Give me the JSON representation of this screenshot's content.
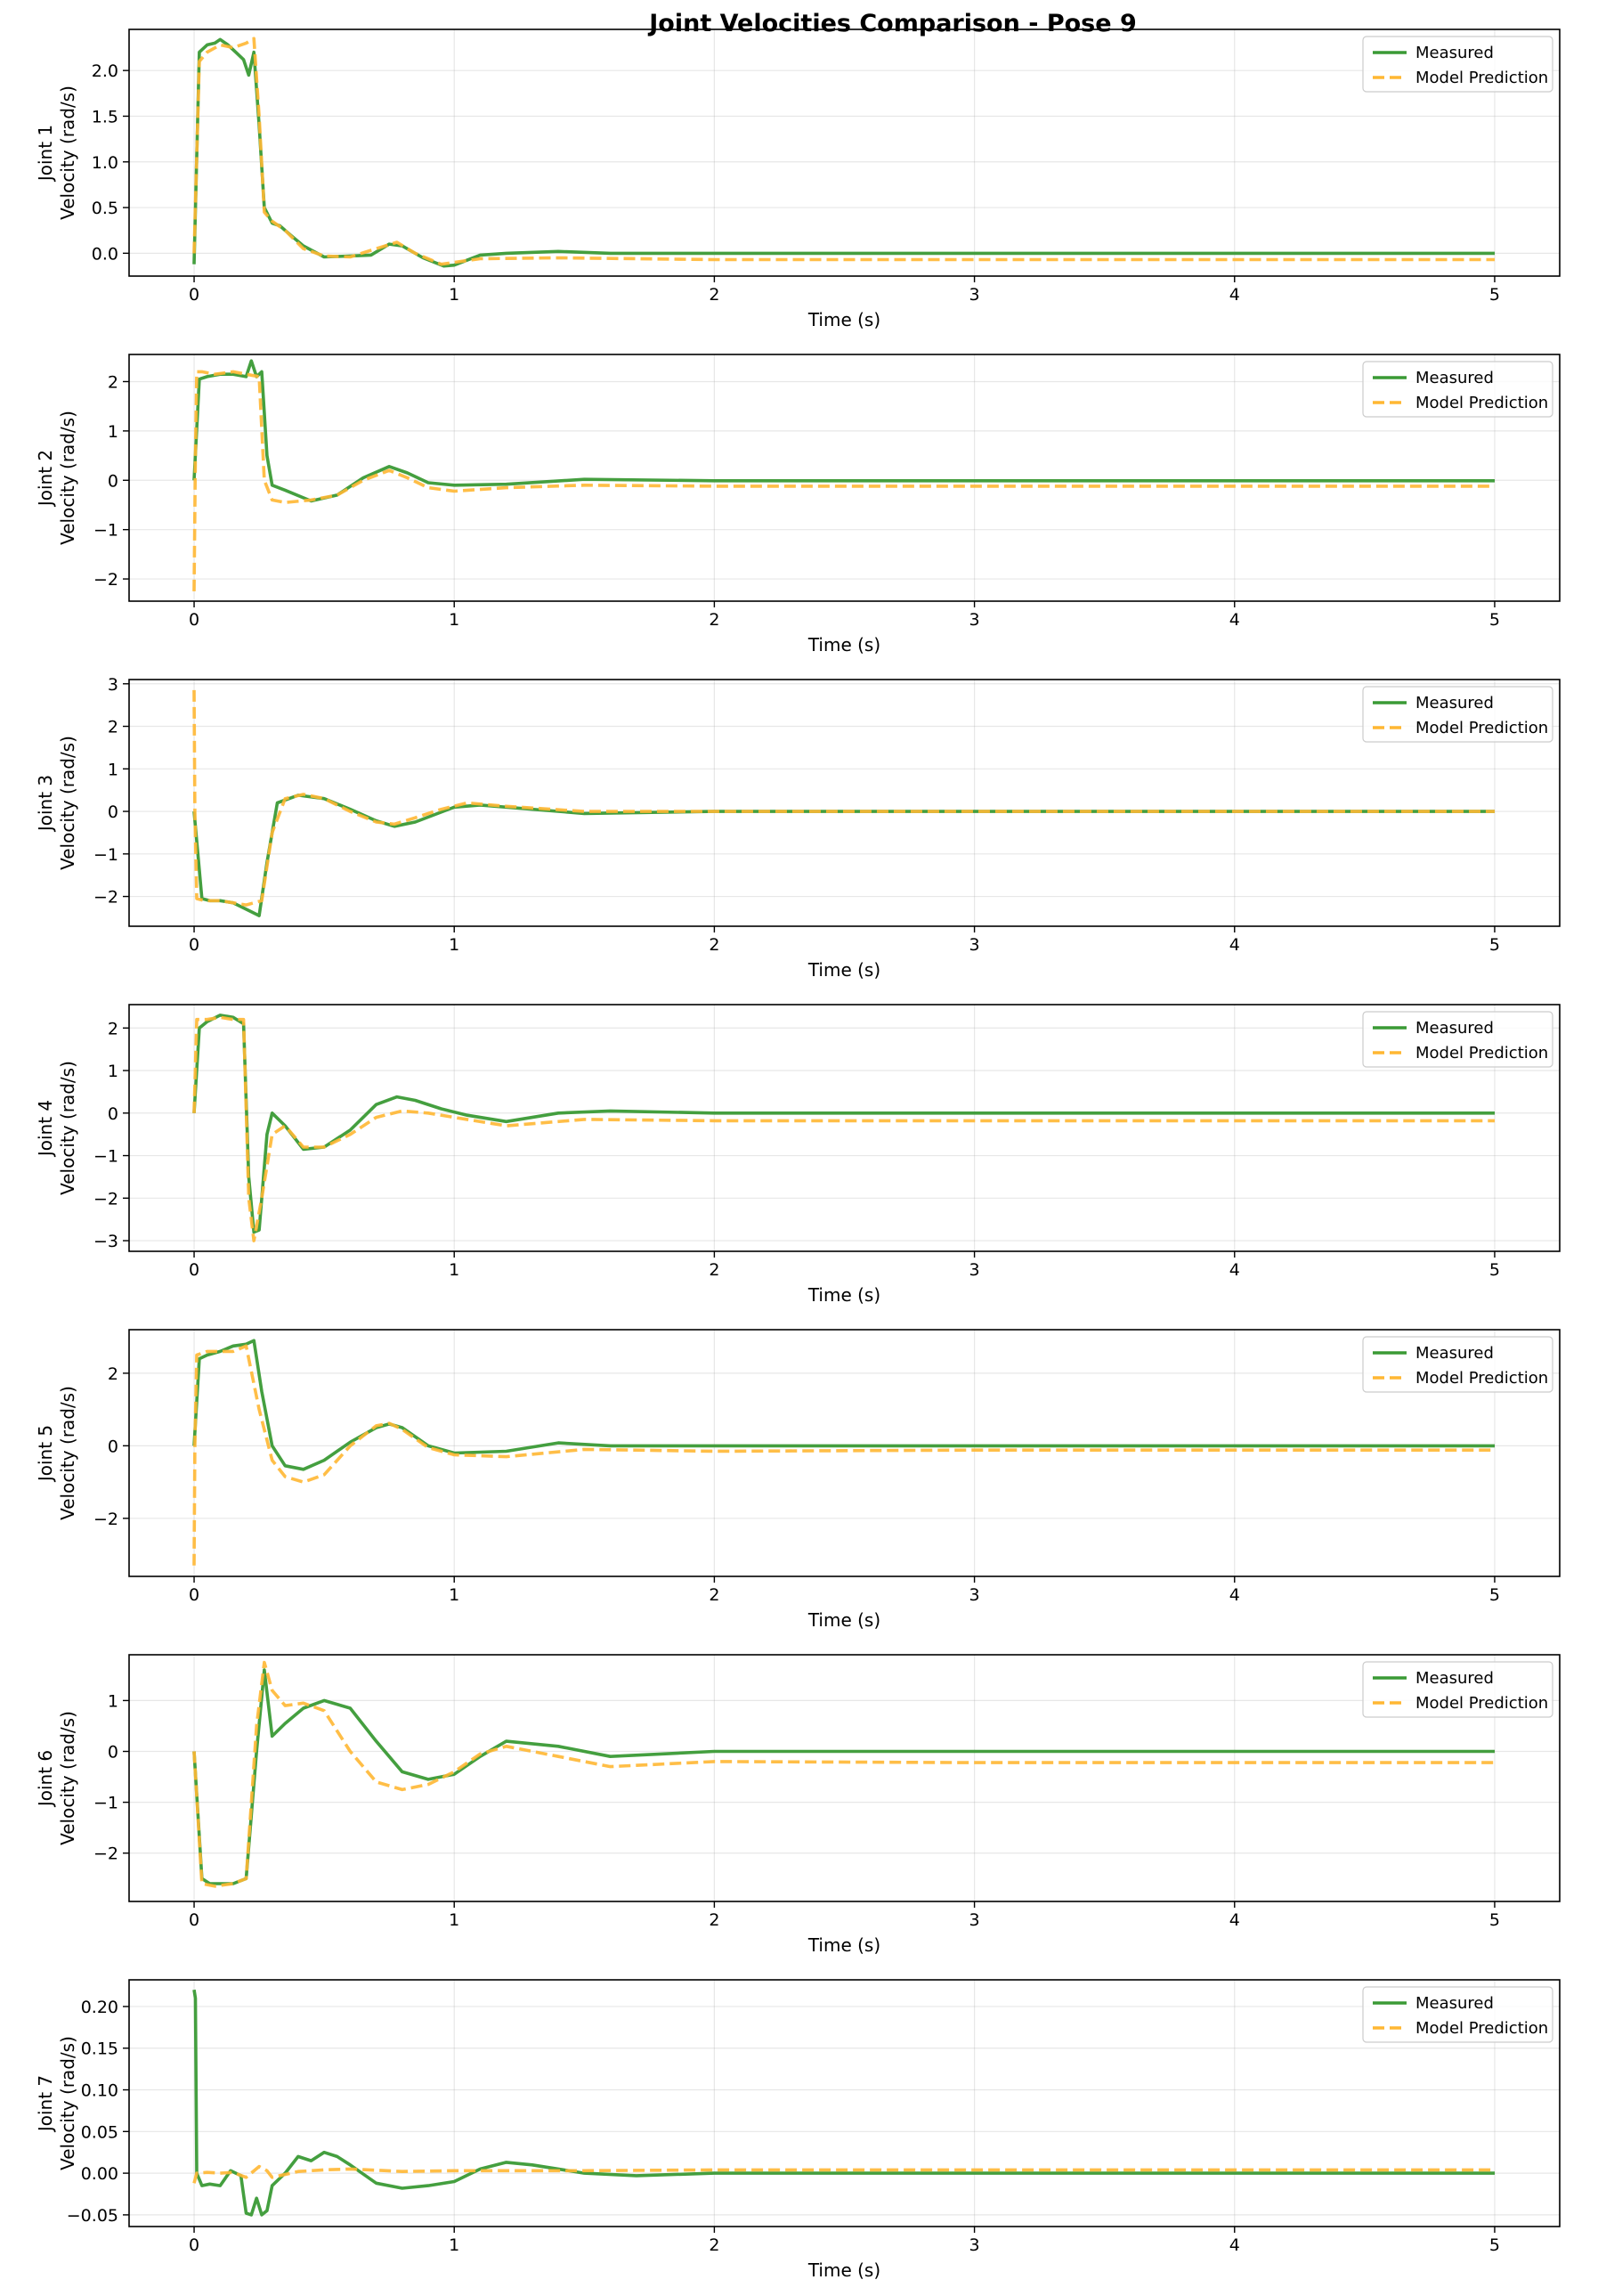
{
  "title": "Joint Velocities Comparison - Pose 9",
  "colors": {
    "measured": "#3a9a35",
    "predicted": "#ffb733"
  },
  "chart_data": [
    {
      "type": "line",
      "xlabel": "Time (s)",
      "ylabel": [
        "Joint 1",
        "Velocity (rad/s)"
      ],
      "xlim": [
        -0.25,
        5.25
      ],
      "ylim": [
        -0.25,
        2.45
      ],
      "xticks": [
        0,
        1,
        2,
        3,
        4,
        5
      ],
      "xticklabels": [
        "0",
        "1",
        "2",
        "3",
        "4",
        "5"
      ],
      "yticks": [
        0,
        0.5,
        1,
        1.5,
        2
      ],
      "yticklabels": [
        "0.0",
        "0.5",
        "1.0",
        "1.5",
        "2.0"
      ],
      "legend": "top-right",
      "series": [
        {
          "name": "Measured",
          "style": "solid",
          "x": [
            0,
            0.02,
            0.05,
            0.08,
            0.1,
            0.13,
            0.16,
            0.19,
            0.21,
            0.23,
            0.25,
            0.27,
            0.3,
            0.33,
            0.37,
            0.42,
            0.5,
            0.6,
            0.68,
            0.75,
            0.8,
            0.88,
            0.96,
            1.0,
            1.1,
            1.2,
            1.4,
            1.6,
            2.0,
            3.0,
            4.0,
            5.0
          ],
          "y": [
            -0.12,
            2.2,
            2.28,
            2.3,
            2.34,
            2.28,
            2.2,
            2.12,
            1.95,
            2.2,
            1.4,
            0.5,
            0.33,
            0.3,
            0.2,
            0.08,
            -0.04,
            -0.03,
            -0.02,
            0.1,
            0.08,
            -0.05,
            -0.14,
            -0.13,
            -0.02,
            0.0,
            0.02,
            0.0,
            0.0,
            0.0,
            0.0,
            0.0
          ]
        },
        {
          "name": "Model Prediction",
          "style": "dashed",
          "x": [
            0,
            0.02,
            0.05,
            0.1,
            0.15,
            0.2,
            0.23,
            0.25,
            0.27,
            0.3,
            0.35,
            0.42,
            0.5,
            0.6,
            0.7,
            0.78,
            0.85,
            0.95,
            1.0,
            1.1,
            1.4,
            2.0,
            3.0,
            4.0,
            5.0
          ],
          "y": [
            0,
            2.1,
            2.2,
            2.28,
            2.25,
            2.3,
            2.35,
            1.5,
            0.45,
            0.35,
            0.25,
            0.05,
            -0.03,
            -0.04,
            0.05,
            0.12,
            0.0,
            -0.12,
            -0.1,
            -0.06,
            -0.05,
            -0.07,
            -0.07,
            -0.07,
            -0.07
          ]
        }
      ]
    },
    {
      "type": "line",
      "xlabel": "Time (s)",
      "ylabel": [
        "Joint 2",
        "Velocity (rad/s)"
      ],
      "xlim": [
        -0.25,
        5.25
      ],
      "ylim": [
        -2.45,
        2.55
      ],
      "xticks": [
        0,
        1,
        2,
        3,
        4,
        5
      ],
      "xticklabels": [
        "0",
        "1",
        "2",
        "3",
        "4",
        "5"
      ],
      "yticks": [
        -2,
        -1,
        0,
        1,
        2
      ],
      "yticklabels": [
        "−2",
        "−1",
        "0",
        "1",
        "2"
      ],
      "legend": "top-right",
      "series": [
        {
          "name": "Measured",
          "style": "solid",
          "x": [
            0,
            0.02,
            0.05,
            0.1,
            0.15,
            0.2,
            0.22,
            0.24,
            0.26,
            0.28,
            0.3,
            0.35,
            0.45,
            0.55,
            0.65,
            0.75,
            0.82,
            0.9,
            1.0,
            1.2,
            1.5,
            2.0,
            3.0,
            4.0,
            5.0
          ],
          "y": [
            0,
            2.05,
            2.1,
            2.15,
            2.15,
            2.1,
            2.42,
            2.1,
            2.2,
            0.5,
            -0.1,
            -0.2,
            -0.42,
            -0.3,
            0.05,
            0.28,
            0.15,
            -0.05,
            -0.1,
            -0.08,
            0.02,
            -0.01,
            -0.01,
            -0.01,
            -0.01
          ]
        },
        {
          "name": "Model Prediction",
          "style": "dashed",
          "x": [
            0,
            0.005,
            0.01,
            0.03,
            0.08,
            0.15,
            0.2,
            0.25,
            0.27,
            0.3,
            0.35,
            0.45,
            0.55,
            0.65,
            0.75,
            0.82,
            0.9,
            1.0,
            1.2,
            1.5,
            2.0,
            3.0,
            4.0,
            5.0
          ],
          "y": [
            -2.25,
            0.5,
            2.2,
            2.2,
            2.15,
            2.2,
            2.15,
            2.1,
            0.0,
            -0.4,
            -0.45,
            -0.4,
            -0.3,
            0.0,
            0.2,
            0.05,
            -0.15,
            -0.22,
            -0.15,
            -0.1,
            -0.12,
            -0.12,
            -0.12,
            -0.12
          ]
        }
      ]
    },
    {
      "type": "line",
      "xlabel": "Time (s)",
      "ylabel": [
        "Joint 3",
        "Velocity (rad/s)"
      ],
      "xlim": [
        -0.25,
        5.25
      ],
      "ylim": [
        -2.7,
        3.1
      ],
      "xticks": [
        0,
        1,
        2,
        3,
        4,
        5
      ],
      "xticklabels": [
        "0",
        "1",
        "2",
        "3",
        "4",
        "5"
      ],
      "yticks": [
        -2,
        -1,
        0,
        1,
        2,
        3
      ],
      "yticklabels": [
        "−2",
        "−1",
        "0",
        "1",
        "2",
        "3"
      ],
      "legend": "top-right",
      "series": [
        {
          "name": "Measured",
          "style": "solid",
          "x": [
            0,
            0.03,
            0.06,
            0.1,
            0.15,
            0.2,
            0.25,
            0.28,
            0.32,
            0.4,
            0.5,
            0.6,
            0.7,
            0.77,
            0.85,
            1.0,
            1.1,
            1.2,
            1.5,
            2.0,
            3.0,
            4.0,
            5.0
          ],
          "y": [
            0,
            -2.05,
            -2.1,
            -2.1,
            -2.15,
            -2.3,
            -2.45,
            -1.2,
            0.2,
            0.38,
            0.3,
            0.05,
            -0.22,
            -0.35,
            -0.25,
            0.1,
            0.15,
            0.1,
            -0.05,
            0.0,
            0.0,
            0.0,
            0.0
          ]
        },
        {
          "name": "Model Prediction",
          "style": "dashed",
          "x": [
            0,
            0.003,
            0.01,
            0.04,
            0.1,
            0.15,
            0.2,
            0.26,
            0.3,
            0.35,
            0.42,
            0.5,
            0.6,
            0.7,
            0.77,
            0.85,
            0.95,
            1.05,
            1.2,
            1.5,
            2.0,
            3.0,
            4.0,
            5.0
          ],
          "y": [
            2.85,
            0.0,
            -2.05,
            -2.1,
            -2.1,
            -2.15,
            -2.2,
            -2.1,
            -0.5,
            0.3,
            0.4,
            0.3,
            0.0,
            -0.25,
            -0.3,
            -0.15,
            0.05,
            0.2,
            0.12,
            0.0,
            0.0,
            0.0,
            0.0,
            0.0
          ]
        }
      ]
    },
    {
      "type": "line",
      "xlabel": "Time (s)",
      "ylabel": [
        "Joint 4",
        "Velocity (rad/s)"
      ],
      "xlim": [
        -0.25,
        5.25
      ],
      "ylim": [
        -3.25,
        2.55
      ],
      "xticks": [
        0,
        1,
        2,
        3,
        4,
        5
      ],
      "xticklabels": [
        "0",
        "1",
        "2",
        "3",
        "4",
        "5"
      ],
      "yticks": [
        -3,
        -2,
        -1,
        0,
        1,
        2
      ],
      "yticklabels": [
        "−3",
        "−2",
        "−1",
        "0",
        "1",
        "2"
      ],
      "legend": "top-right",
      "series": [
        {
          "name": "Measured",
          "style": "solid",
          "x": [
            0,
            0.02,
            0.05,
            0.1,
            0.15,
            0.19,
            0.21,
            0.23,
            0.25,
            0.28,
            0.3,
            0.35,
            0.42,
            0.5,
            0.6,
            0.7,
            0.78,
            0.85,
            0.95,
            1.05,
            1.2,
            1.4,
            1.6,
            2.0,
            3.0,
            4.0,
            5.0
          ],
          "y": [
            0,
            2.0,
            2.15,
            2.3,
            2.25,
            2.1,
            -1.5,
            -2.8,
            -2.75,
            -0.5,
            0.0,
            -0.3,
            -0.85,
            -0.8,
            -0.4,
            0.2,
            0.38,
            0.3,
            0.1,
            -0.05,
            -0.2,
            0.0,
            0.05,
            0.0,
            0.0,
            0.0,
            0.0
          ]
        },
        {
          "name": "Model Prediction",
          "style": "dashed",
          "x": [
            0,
            0.01,
            0.05,
            0.1,
            0.15,
            0.19,
            0.21,
            0.23,
            0.26,
            0.3,
            0.35,
            0.42,
            0.5,
            0.6,
            0.7,
            0.8,
            0.9,
            1.0,
            1.2,
            1.5,
            2.0,
            3.0,
            4.0,
            5.0
          ],
          "y": [
            0,
            2.2,
            2.2,
            2.25,
            2.2,
            2.2,
            -2.0,
            -3.0,
            -2.0,
            -0.5,
            -0.3,
            -0.8,
            -0.8,
            -0.5,
            -0.1,
            0.05,
            0.0,
            -0.1,
            -0.3,
            -0.15,
            -0.18,
            -0.18,
            -0.18,
            -0.18
          ]
        }
      ]
    },
    {
      "type": "line",
      "xlabel": "Time (s)",
      "ylabel": [
        "Joint 5",
        "Velocity (rad/s)"
      ],
      "xlim": [
        -0.25,
        5.25
      ],
      "ylim": [
        -3.6,
        3.2
      ],
      "xticks": [
        0,
        1,
        2,
        3,
        4,
        5
      ],
      "xticklabels": [
        "0",
        "1",
        "2",
        "3",
        "4",
        "5"
      ],
      "yticks": [
        -2,
        0,
        2
      ],
      "yticklabels": [
        "−2",
        "0",
        "2"
      ],
      "legend": "top-right",
      "series": [
        {
          "name": "Measured",
          "style": "solid",
          "x": [
            0,
            0.02,
            0.05,
            0.1,
            0.15,
            0.2,
            0.23,
            0.26,
            0.3,
            0.35,
            0.42,
            0.5,
            0.6,
            0.7,
            0.75,
            0.8,
            0.9,
            1.0,
            1.2,
            1.4,
            1.6,
            2.0,
            3.0,
            4.0,
            5.0
          ],
          "y": [
            0,
            2.4,
            2.5,
            2.6,
            2.75,
            2.8,
            2.9,
            1.5,
            0.0,
            -0.55,
            -0.65,
            -0.4,
            0.1,
            0.5,
            0.6,
            0.5,
            0.0,
            -0.2,
            -0.15,
            0.08,
            0.0,
            0.0,
            0.0,
            0.0,
            0.0
          ]
        },
        {
          "name": "Model Prediction",
          "style": "dashed",
          "x": [
            0,
            0.003,
            0.01,
            0.05,
            0.1,
            0.15,
            0.2,
            0.25,
            0.3,
            0.35,
            0.42,
            0.5,
            0.6,
            0.7,
            0.75,
            0.8,
            0.9,
            1.0,
            1.2,
            1.5,
            2.0,
            3.0,
            4.0,
            5.0
          ],
          "y": [
            -3.3,
            0.0,
            2.5,
            2.6,
            2.6,
            2.6,
            2.75,
            1.0,
            -0.4,
            -0.85,
            -1.0,
            -0.8,
            0.0,
            0.55,
            0.62,
            0.45,
            -0.05,
            -0.25,
            -0.3,
            -0.1,
            -0.15,
            -0.12,
            -0.12,
            -0.12
          ]
        }
      ]
    },
    {
      "type": "line",
      "xlabel": "Time (s)",
      "ylabel": [
        "Joint 6",
        "Velocity (rad/s)"
      ],
      "xlim": [
        -0.25,
        5.25
      ],
      "ylim": [
        -2.95,
        1.9
      ],
      "xticks": [
        0,
        1,
        2,
        3,
        4,
        5
      ],
      "xticklabels": [
        "0",
        "1",
        "2",
        "3",
        "4",
        "5"
      ],
      "yticks": [
        -2,
        -1,
        0,
        1
      ],
      "yticklabels": [
        "−2",
        "−1",
        "0",
        "1"
      ],
      "legend": "top-right",
      "series": [
        {
          "name": "Measured",
          "style": "solid",
          "x": [
            0,
            0.03,
            0.06,
            0.1,
            0.15,
            0.2,
            0.24,
            0.27,
            0.3,
            0.35,
            0.42,
            0.5,
            0.6,
            0.7,
            0.8,
            0.9,
            1.0,
            1.1,
            1.2,
            1.4,
            1.6,
            2.0,
            3.0,
            4.0,
            5.0
          ],
          "y": [
            0,
            -2.5,
            -2.6,
            -2.6,
            -2.6,
            -2.5,
            0.0,
            1.6,
            0.3,
            0.55,
            0.85,
            1.0,
            0.85,
            0.2,
            -0.4,
            -0.55,
            -0.45,
            -0.1,
            0.2,
            0.1,
            -0.1,
            0.0,
            0.0,
            0.0,
            0.0
          ]
        },
        {
          "name": "Model Prediction",
          "style": "dashed",
          "x": [
            0,
            0.03,
            0.08,
            0.15,
            0.2,
            0.24,
            0.27,
            0.3,
            0.35,
            0.42,
            0.5,
            0.6,
            0.7,
            0.8,
            0.9,
            1.0,
            1.1,
            1.2,
            1.4,
            1.6,
            2.0,
            3.0,
            4.0,
            5.0
          ],
          "y": [
            0,
            -2.6,
            -2.65,
            -2.6,
            -2.5,
            0.5,
            1.75,
            1.2,
            0.9,
            0.95,
            0.8,
            0.0,
            -0.6,
            -0.75,
            -0.65,
            -0.4,
            -0.05,
            0.1,
            -0.1,
            -0.3,
            -0.2,
            -0.22,
            -0.22,
            -0.22
          ]
        }
      ]
    },
    {
      "type": "line",
      "xlabel": "Time (s)",
      "ylabel": [
        "Joint 7",
        "Velocity (rad/s)"
      ],
      "xlim": [
        -0.25,
        5.25
      ],
      "ylim": [
        -0.064,
        0.232
      ],
      "xticks": [
        0,
        1,
        2,
        3,
        4,
        5
      ],
      "xticklabels": [
        "0",
        "1",
        "2",
        "3",
        "4",
        "5"
      ],
      "yticks": [
        -0.05,
        0,
        0.05,
        0.1,
        0.15,
        0.2
      ],
      "yticklabels": [
        "−0.05",
        "0.00",
        "0.05",
        "0.10",
        "0.15",
        "0.20"
      ],
      "legend": "top-right",
      "series": [
        {
          "name": "Measured",
          "style": "solid",
          "x": [
            0,
            0.005,
            0.01,
            0.03,
            0.06,
            0.1,
            0.14,
            0.18,
            0.2,
            0.22,
            0.24,
            0.26,
            0.28,
            0.3,
            0.35,
            0.4,
            0.45,
            0.5,
            0.55,
            0.6,
            0.7,
            0.8,
            0.9,
            1.0,
            1.1,
            1.2,
            1.3,
            1.5,
            1.7,
            2.0,
            3.0,
            4.0,
            5.0
          ],
          "y": [
            0.22,
            0.21,
            0.0,
            -0.015,
            -0.013,
            -0.015,
            0.003,
            -0.003,
            -0.048,
            -0.05,
            -0.03,
            -0.05,
            -0.045,
            -0.015,
            0.0,
            0.02,
            0.015,
            0.025,
            0.02,
            0.01,
            -0.012,
            -0.018,
            -0.015,
            -0.01,
            0.005,
            0.013,
            0.01,
            0.0,
            -0.003,
            0.0,
            0.0,
            0.0,
            0.0
          ]
        },
        {
          "name": "Model Prediction",
          "style": "dashed",
          "x": [
            0,
            0.01,
            0.05,
            0.1,
            0.15,
            0.2,
            0.25,
            0.28,
            0.3,
            0.4,
            0.5,
            0.6,
            0.8,
            1.0,
            1.2,
            1.5,
            2.0,
            3.0,
            4.0,
            5.0
          ],
          "y": [
            -0.012,
            0.0,
            0.001,
            0.0,
            0.001,
            -0.005,
            0.008,
            0.003,
            -0.005,
            0.002,
            0.004,
            0.005,
            0.002,
            0.003,
            0.003,
            0.003,
            0.004,
            0.004,
            0.004,
            0.004
          ]
        }
      ]
    }
  ]
}
